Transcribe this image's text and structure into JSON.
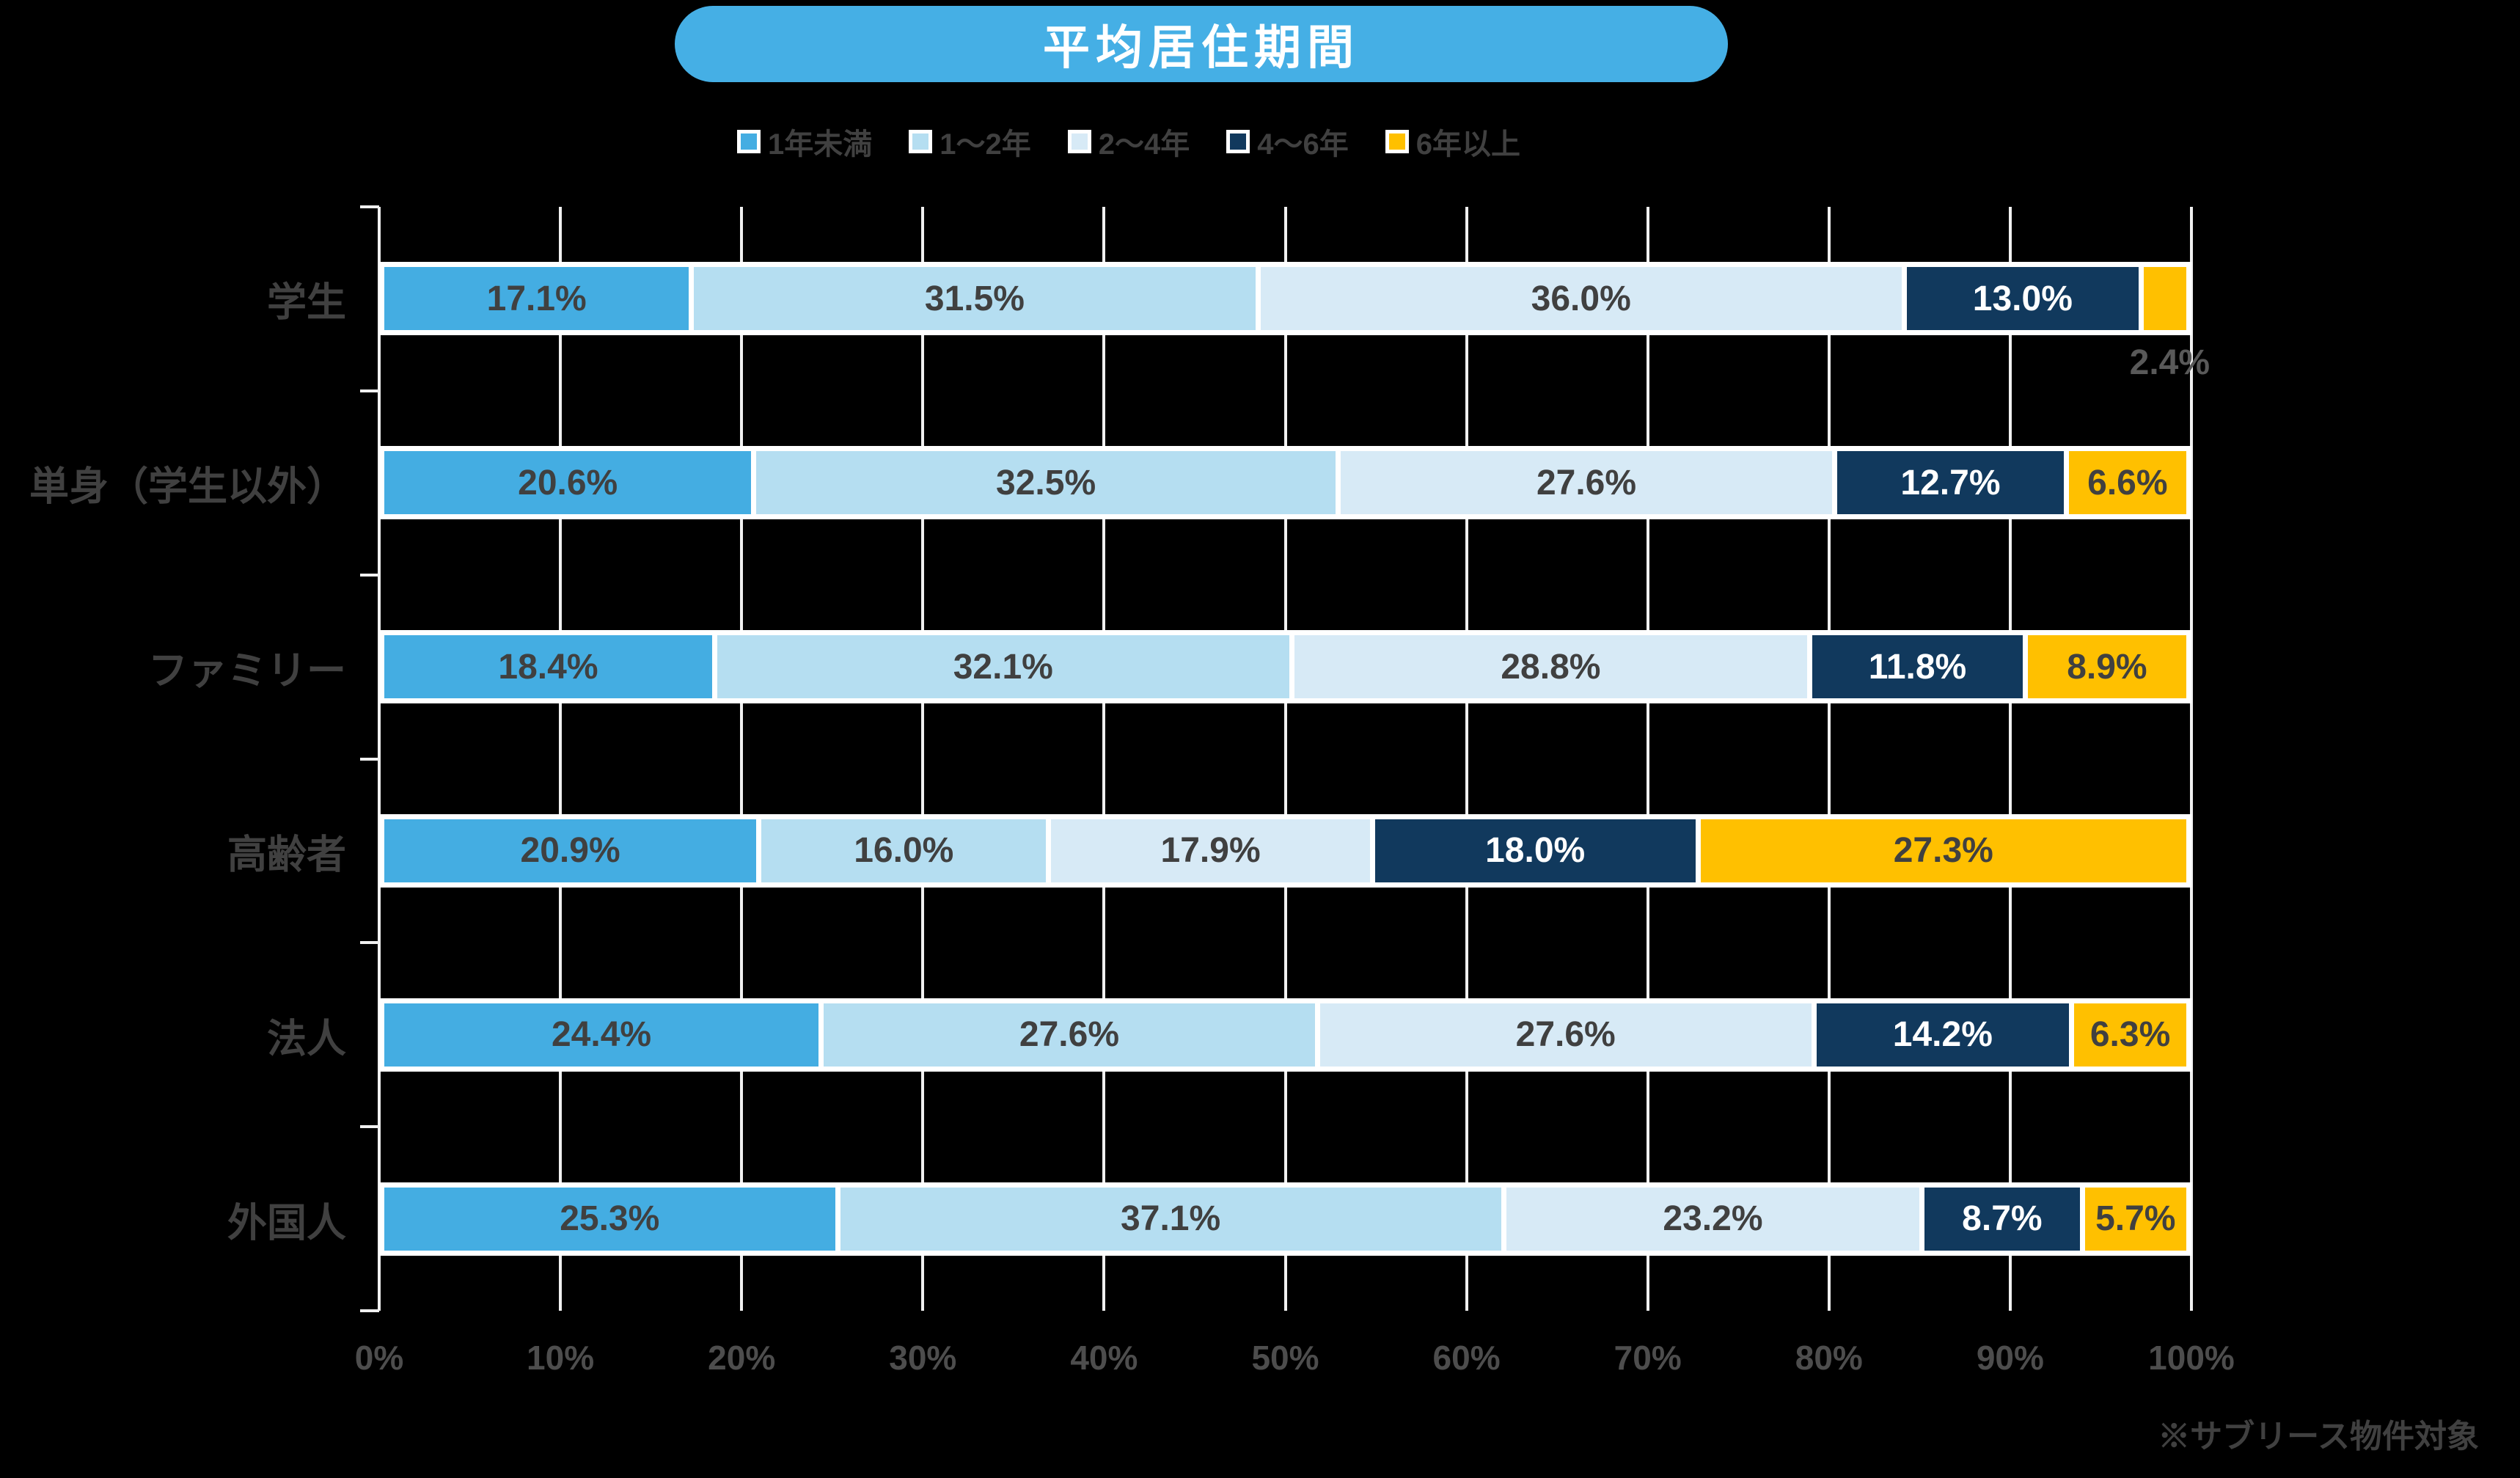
{
  "chart_data": {
    "type": "bar",
    "orientation": "horizontal-stacked",
    "title": "平均居住期間",
    "categories": [
      "学生",
      "単身（学生以外）",
      "ファミリー",
      "高齢者",
      "法人",
      "外国人"
    ],
    "series": [
      {
        "name": "1年未満",
        "color": "#44ADE2",
        "label_color": "#404040",
        "values": [
          17.1,
          20.6,
          18.4,
          20.9,
          24.4,
          25.3
        ]
      },
      {
        "name": "1～2年",
        "color": "#B5DEF1",
        "label_color": "#404040",
        "values": [
          31.5,
          32.5,
          32.1,
          16.0,
          27.6,
          37.1
        ]
      },
      {
        "name": "2～4年",
        "color": "#D7EAF6",
        "label_color": "#404040",
        "values": [
          36.0,
          27.6,
          28.8,
          17.9,
          27.6,
          23.2
        ]
      },
      {
        "name": "4～6年",
        "color": "#11395D",
        "label_color": "#FFFFFF",
        "values": [
          13.0,
          12.7,
          11.8,
          18.0,
          14.2,
          8.7
        ]
      },
      {
        "name": "6年以上",
        "color": "#FFC000",
        "label_color": "#404040",
        "values": [
          2.4,
          6.6,
          8.9,
          27.3,
          6.3,
          5.7
        ]
      }
    ],
    "value_suffix": "%",
    "x_ticks": [
      "0%",
      "10%",
      "20%",
      "30%",
      "40%",
      "50%",
      "60%",
      "70%",
      "80%",
      "90%",
      "100%"
    ],
    "xlim": [
      0,
      100
    ],
    "grid": true,
    "legend_position": "top",
    "outside_labels": [
      {
        "category_index": 0,
        "series_index": 4
      }
    ]
  },
  "footnote": "※サブリース物件対象",
  "colors": {
    "background": "#000000",
    "title-bg": "#45AFE5",
    "title-text": "#FFFFFF",
    "label-dark": "#404040",
    "axis-text": "#4D4D4D",
    "outside-label-text": "#595959",
    "grid": "#F0F0F0",
    "bar-border": "#FFFFFF"
  }
}
